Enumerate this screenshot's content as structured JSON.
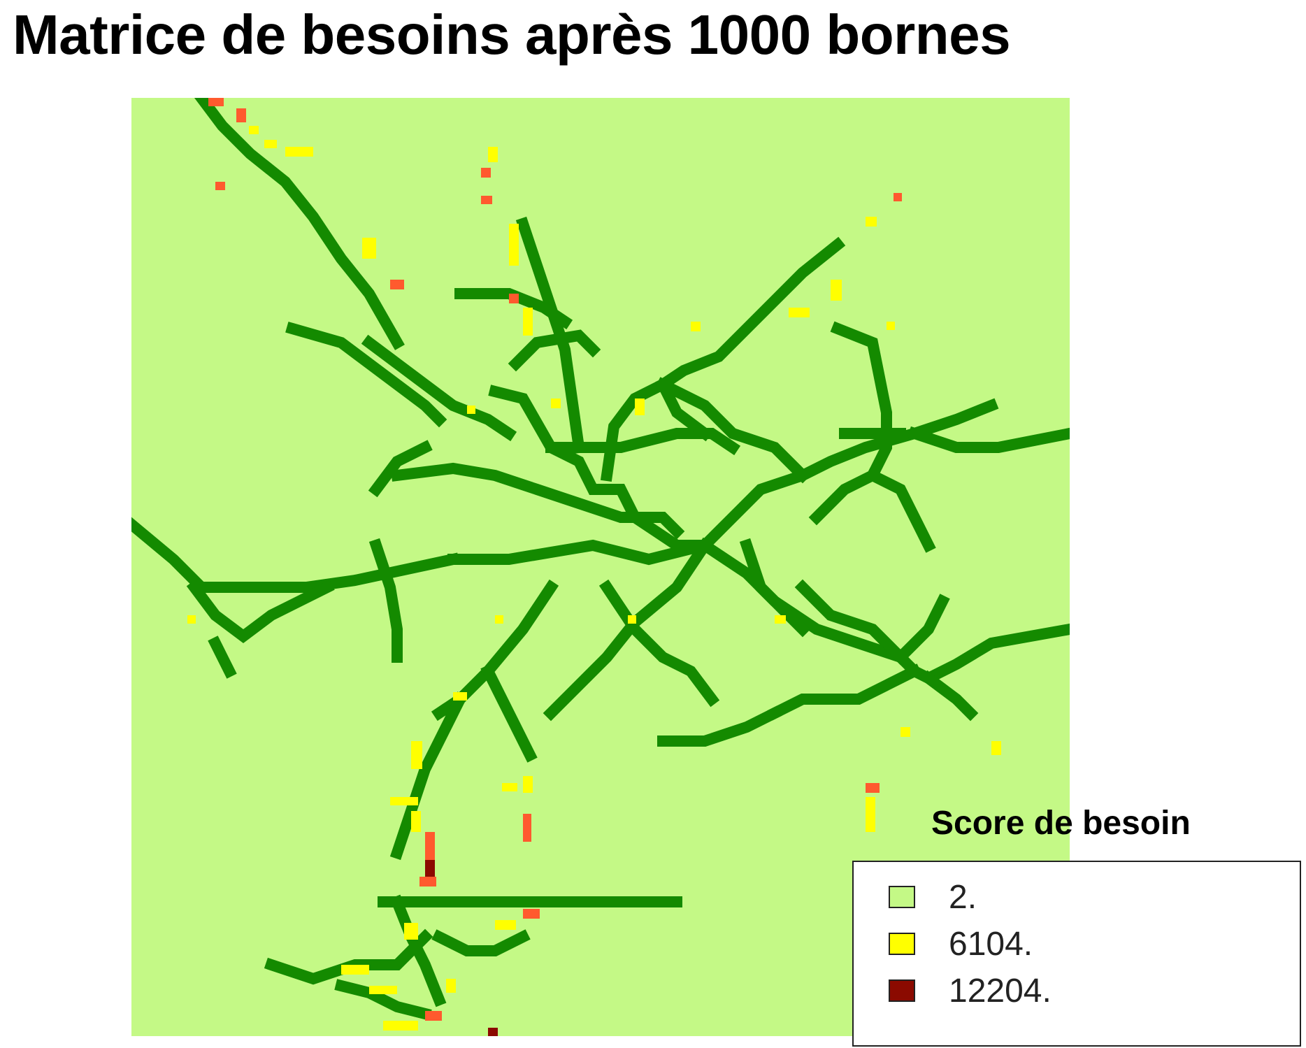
{
  "title": "Matrice de besoins après 1000 bornes",
  "colors": {
    "background": "#c4f986",
    "road": "#148a00",
    "score_medium": "#ffff00",
    "score_high": "#ff5a2e",
    "score_max": "#8b0a00"
  },
  "legend": {
    "title": "Score de besoin",
    "items": [
      {
        "label": "2.",
        "color": "#c4f986"
      },
      {
        "label": "6104.",
        "color": "#ffff00"
      },
      {
        "label": "12204.",
        "color": "#8b0a00"
      }
    ]
  }
}
